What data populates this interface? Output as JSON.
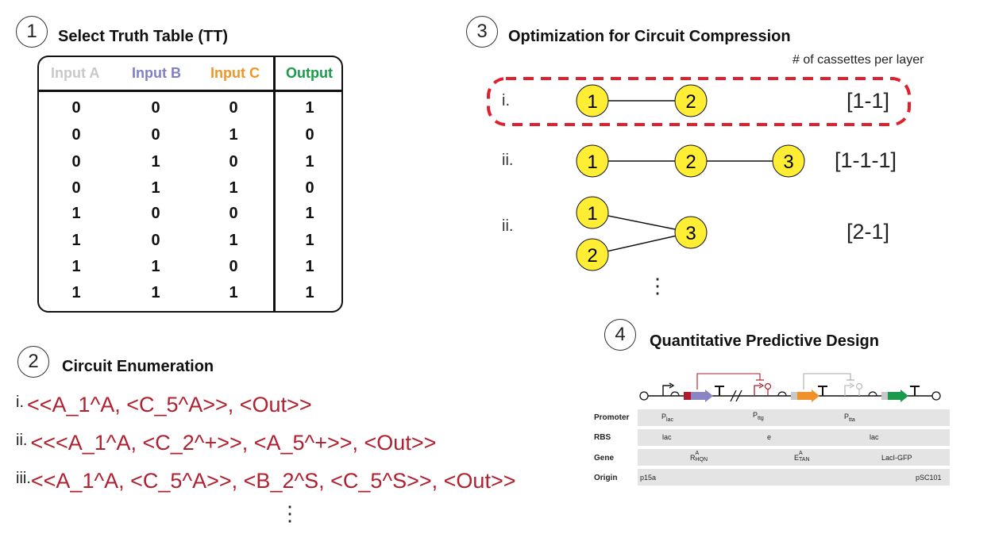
{
  "panel1": {
    "number": "1",
    "title": "Select Truth Table (TT)",
    "headers": [
      {
        "label": "Input A",
        "color": "#c8c8c8"
      },
      {
        "label": "Input B",
        "color": "#7f7fc4"
      },
      {
        "label": "Input C",
        "color": "#f0952a"
      },
      {
        "label": "Output",
        "color": "#1a9a4a"
      }
    ],
    "rows": [
      [
        "0",
        "0",
        "0",
        "1"
      ],
      [
        "0",
        "0",
        "1",
        "0"
      ],
      [
        "0",
        "1",
        "0",
        "1"
      ],
      [
        "0",
        "1",
        "1",
        "0"
      ],
      [
        "1",
        "0",
        "0",
        "1"
      ],
      [
        "1",
        "0",
        "1",
        "1"
      ],
      [
        "1",
        "1",
        "0",
        "1"
      ],
      [
        "1",
        "1",
        "1",
        "1"
      ]
    ]
  },
  "panel2": {
    "number": "2",
    "title": "Circuit Enumeration",
    "circuits": [
      {
        "roman": "i.",
        "text": "<<A_1^A, <C_5^A>>, <Out>>"
      },
      {
        "roman": "ii.",
        "text": "<<<A_1^A, <C_2^+>>, <A_5^+>>, <Out>>"
      },
      {
        "roman": "iii.",
        "text": "<<A_1^A, <C_5^A>>, <B_2^S, <C_5^S>>, <Out>>"
      }
    ],
    "ellipsis": "⋮"
  },
  "panel3": {
    "number": "3",
    "title": "Optimization for Circuit Compression",
    "subtitle": "# of cassettes per layer",
    "options": [
      {
        "roman": "i.",
        "bracket": "[1-1]",
        "nodes": [
          "1",
          "2"
        ]
      },
      {
        "roman": "ii.",
        "bracket": "[1-1-1]",
        "nodes": [
          "1",
          "2",
          "3"
        ]
      },
      {
        "roman": "ii.",
        "bracket": "[2-1]",
        "nodes": [
          "1",
          "2",
          "3"
        ]
      }
    ],
    "node_color": "#ffee33",
    "highlight_color": "#e0202c",
    "ellipsis": "⋮"
  },
  "panel4": {
    "number": "4",
    "title": "Quantitative Predictive Design",
    "rows": [
      {
        "label": "Promoter",
        "values": [
          "P",
          "P",
          "P"
        ],
        "subs": [
          "lac",
          "ttg",
          "tta"
        ]
      },
      {
        "label": "RBS",
        "values": [
          "lac",
          "e",
          "lac"
        ]
      },
      {
        "label": "Gene",
        "values": [
          "R",
          "E",
          "LacI-GFP"
        ],
        "sups": [
          "A",
          "A"
        ],
        "subs": [
          "HQN",
          "TAN"
        ]
      },
      {
        "label": "Origin",
        "values": [
          "p15a",
          "pSC101"
        ]
      }
    ],
    "part_colors": {
      "red": "#b01c2a",
      "purple": "#8a86c6",
      "orange": "#f0922a",
      "green": "#1a9a4a",
      "gray": "#c8c8c8"
    }
  }
}
